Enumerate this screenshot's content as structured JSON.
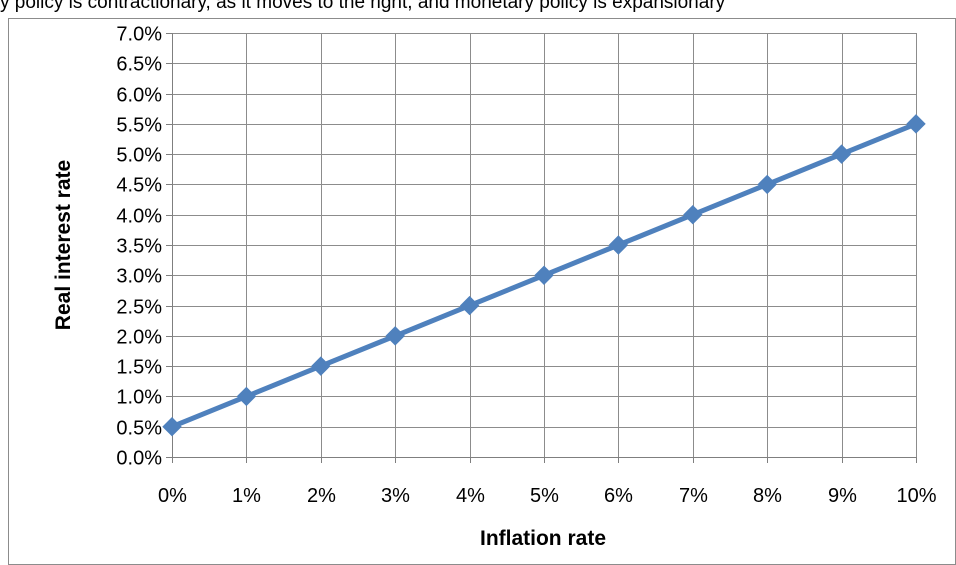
{
  "top_strip_text": "y policy is contractionary, as it moves to the right, and monetary policy is expansionary",
  "chart_data": {
    "type": "line",
    "title": "",
    "xlabel": "Inflation rate",
    "ylabel": "Real interest rate",
    "x": [
      0,
      1,
      2,
      3,
      4,
      5,
      6,
      7,
      8,
      9,
      10
    ],
    "x_tick_labels": [
      "0%",
      "1%",
      "2%",
      "3%",
      "4%",
      "5%",
      "6%",
      "7%",
      "8%",
      "9%",
      "10%"
    ],
    "y_tick_labels": [
      "0.0%",
      "0.5%",
      "1.0%",
      "1.5%",
      "2.0%",
      "2.5%",
      "3.0%",
      "3.5%",
      "4.0%",
      "4.5%",
      "5.0%",
      "5.5%",
      "6.0%",
      "6.5%",
      "7.0%"
    ],
    "ylim": [
      0,
      7
    ],
    "xlim": [
      0,
      10
    ],
    "grid": true,
    "legend": "none",
    "series": [
      {
        "values": [
          0.5,
          1.0,
          1.5,
          2.0,
          2.5,
          3.0,
          3.5,
          4.0,
          4.5,
          5.0,
          5.5
        ]
      }
    ],
    "colors": {
      "line": "#4f81bd",
      "grid": "#8c8c8c",
      "axis": "#7f7f7f"
    }
  }
}
